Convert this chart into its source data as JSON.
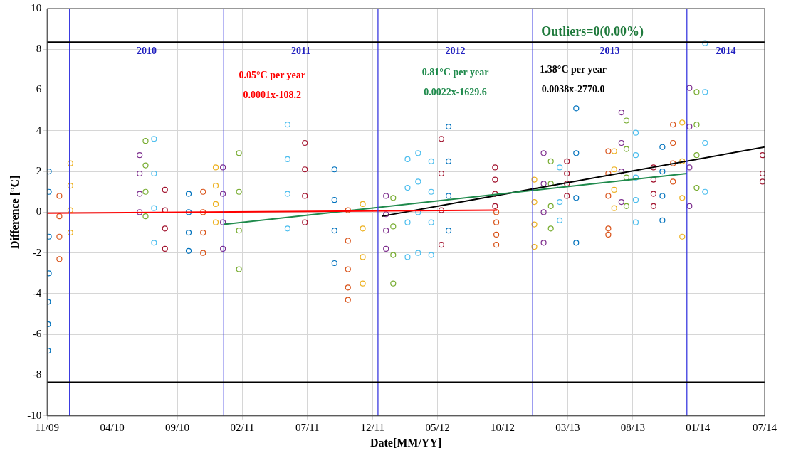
{
  "chart_data": {
    "type": "scatter",
    "xlabel": "Date[MM/YY]",
    "ylabel": "Difference [°C]",
    "marker": "circle",
    "grid": true,
    "xlim": [
      "2009-11-09",
      "2014-07-04"
    ],
    "xticks": [
      {
        "value": "2009-11-09",
        "label": "11/09"
      },
      {
        "value": "2010-04-12",
        "label": "04/10"
      },
      {
        "value": "2010-09-13",
        "label": "09/10"
      },
      {
        "value": "2011-02-14",
        "label": "02/11"
      },
      {
        "value": "2011-07-18",
        "label": "07/11"
      },
      {
        "value": "2011-12-19",
        "label": "12/11"
      },
      {
        "value": "2012-05-21",
        "label": "05/12"
      },
      {
        "value": "2012-10-22",
        "label": "10/12"
      },
      {
        "value": "2013-03-25",
        "label": "03/13"
      },
      {
        "value": "2013-08-26",
        "label": "08/13"
      },
      {
        "value": "2014-01-27",
        "label": "01/14"
      },
      {
        "value": "2014-07-04",
        "label": "07/14"
      }
    ],
    "ylim": [
      -10,
      10
    ],
    "yticks": [
      -10,
      -8,
      -6,
      -4,
      -2,
      0,
      2,
      4,
      6,
      8,
      10
    ],
    "series": [
      {
        "color": "#0072bd",
        "x": [
          "2009-11-13",
          "2009-11-13",
          "2009-11-13",
          "2009-11-13",
          "2009-11-11",
          "2009-11-11",
          "2009-11-11",
          "2010-10-10",
          "2010-10-10",
          "2010-10-10",
          "2010-10-10",
          "2011-09-20",
          "2011-09-20",
          "2011-09-20",
          "2011-09-20",
          "2012-06-16",
          "2012-06-16",
          "2012-06-16",
          "2012-06-16",
          "2013-04-14",
          "2013-04-14",
          "2013-04-14",
          "2013-04-14",
          "2013-11-04",
          "2013-11-04",
          "2013-11-04",
          "2013-11-04"
        ],
        "values": [
          2.0,
          1.0,
          -1.2,
          -3.0,
          -4.4,
          -5.5,
          -6.8,
          -1.9,
          -1.0,
          0,
          0.9,
          -2.5,
          -0.9,
          0.6,
          2.1,
          -0.9,
          0.8,
          2.5,
          4.2,
          -1.5,
          0.7,
          2.9,
          5.1,
          -0.4,
          0.8,
          2.0,
          3.2
        ]
      },
      {
        "color": "#d95319",
        "x": [
          "2009-12-08",
          "2009-12-08",
          "2009-12-08",
          "2009-12-08",
          "2010-11-13",
          "2010-11-13",
          "2010-11-13",
          "2010-11-13",
          "2011-10-22",
          "2011-10-22",
          "2011-10-22",
          "2011-10-22",
          "2011-10-22",
          "2012-10-07",
          "2012-10-07",
          "2012-10-07",
          "2012-10-07",
          "2013-06-29",
          "2013-06-29",
          "2013-06-29",
          "2013-06-29",
          "2013-06-29",
          "2013-11-29",
          "2013-11-29",
          "2013-11-29",
          "2013-11-29"
        ],
        "values": [
          -2.3,
          -1.2,
          -0.2,
          0.8,
          -2,
          -1,
          0,
          1,
          -4.3,
          -3.7,
          -2.8,
          -1.4,
          0.1,
          -1.6,
          -1.1,
          -0.5,
          0,
          -1.1,
          -0.8,
          0.8,
          1.9,
          3.0,
          1.5,
          2.4,
          3.4,
          4.3
        ]
      },
      {
        "color": "#edb120",
        "x": [
          "2010-01-03",
          "2010-01-03",
          "2010-01-03",
          "2010-01-03",
          "2010-12-13",
          "2010-12-13",
          "2010-12-13",
          "2010-12-13",
          "2011-11-26",
          "2011-11-26",
          "2011-11-26",
          "2011-11-26",
          "2013-01-05",
          "2013-01-05",
          "2013-01-05",
          "2013-01-05",
          "2013-07-13",
          "2013-07-13",
          "2013-07-13",
          "2013-07-13",
          "2013-12-21",
          "2013-12-21",
          "2013-12-21",
          "2013-12-21"
        ],
        "values": [
          -1,
          0.1,
          1.3,
          2.4,
          -0.5,
          0.4,
          1.3,
          2.2,
          -3.5,
          -2.2,
          -0.8,
          0.4,
          -1.7,
          -0.6,
          0.5,
          1.6,
          0.2,
          1.1,
          2.1,
          3.0,
          -1.2,
          0.7,
          2.5,
          4.4
        ]
      },
      {
        "color": "#7e2f8e",
        "x": [
          "2010-06-16",
          "2010-06-16",
          "2010-06-16",
          "2010-06-16",
          "2010-12-30",
          "2010-12-30",
          "2010-12-30",
          "2010-12-30",
          "2012-01-20",
          "2012-01-20",
          "2012-01-20",
          "2012-01-20",
          "2013-01-27",
          "2013-01-27",
          "2013-01-27",
          "2013-01-27",
          "2013-07-30",
          "2013-07-30",
          "2013-07-30",
          "2013-07-30",
          "2014-01-07",
          "2014-01-07",
          "2014-01-07",
          "2014-01-07"
        ],
        "values": [
          0,
          0.9,
          1.9,
          2.8,
          -1.8,
          -0.5,
          0.9,
          2.2,
          -1.8,
          -0.9,
          -0.1,
          0.8,
          -1.5,
          0,
          1.4,
          2.9,
          0.5,
          2.0,
          3.4,
          4.9,
          0.3,
          2.2,
          4.2,
          6.1
        ]
      },
      {
        "color": "#77ac30",
        "x": [
          "2010-06-30",
          "2010-06-30",
          "2010-06-30",
          "2010-06-30",
          "2011-02-06",
          "2011-02-06",
          "2011-02-06",
          "2011-02-06",
          "2012-02-06",
          "2012-02-06",
          "2012-02-06",
          "2012-02-06",
          "2013-02-13",
          "2013-02-13",
          "2013-02-13",
          "2013-02-13",
          "2013-08-11",
          "2013-08-11",
          "2013-08-11",
          "2013-08-11",
          "2014-01-24",
          "2014-01-24",
          "2014-01-24",
          "2014-01-24"
        ],
        "values": [
          -0.2,
          1.0,
          2.3,
          3.5,
          -2.8,
          -0.9,
          1.0,
          2.9,
          -3.5,
          -2.1,
          -0.7,
          0.7,
          -0.8,
          0.3,
          1.4,
          2.5,
          0.3,
          1.7,
          3.1,
          4.5,
          1.2,
          2.8,
          4.3,
          5.9
        ]
      },
      {
        "color": "#4dbeee",
        "x": [
          "2010-07-20",
          "2010-07-20",
          "2010-07-20",
          "2010-07-20",
          "2011-06-01",
          "2011-06-01",
          "2011-06-01",
          "2011-06-01",
          "2012-03-11",
          "2012-03-11",
          "2012-03-11",
          "2012-03-11",
          "2012-04-05",
          "2012-04-05",
          "2012-04-05",
          "2012-04-05",
          "2012-05-06",
          "2012-05-06",
          "2012-05-06",
          "2012-05-06",
          "2013-03-06",
          "2013-03-06",
          "2013-03-06",
          "2013-03-06",
          "2013-09-02",
          "2013-09-02",
          "2013-09-02",
          "2013-09-02",
          "2013-09-02",
          "2014-02-13",
          "2014-02-13",
          "2014-02-13",
          "2014-02-13"
        ],
        "values": [
          -1.5,
          0.2,
          1.9,
          3.6,
          -0.8,
          0.9,
          2.6,
          4.3,
          -2.2,
          -0.5,
          1.2,
          2.6,
          -2.0,
          0,
          1.5,
          2.9,
          -2.1,
          -0.5,
          1.0,
          2.5,
          -0.4,
          0.5,
          1.3,
          2.2,
          -0.5,
          0.6,
          1.7,
          2.8,
          3.9,
          1.0,
          3.4,
          5.9,
          8.3
        ]
      },
      {
        "color": "#a2142f",
        "x": [
          "2010-08-15",
          "2010-08-15",
          "2010-08-15",
          "2010-08-15",
          "2011-07-12",
          "2011-07-12",
          "2011-07-12",
          "2011-07-12",
          "2012-05-30",
          "2012-05-30",
          "2012-05-30",
          "2012-05-30",
          "2012-10-04",
          "2012-10-04",
          "2012-10-04",
          "2012-10-04",
          "2013-03-23",
          "2013-03-23",
          "2013-03-23",
          "2013-03-23",
          "2013-10-14",
          "2013-10-14",
          "2013-10-14",
          "2013-10-14",
          "2014-06-29",
          "2014-06-29",
          "2014-06-29"
        ],
        "values": [
          -1.8,
          -0.8,
          0.1,
          1.1,
          -0.5,
          0.8,
          2.1,
          3.4,
          -1.6,
          0.1,
          1.9,
          3.6,
          0.3,
          0.9,
          1.6,
          2.2,
          0.8,
          1.4,
          1.9,
          2.5,
          0.3,
          0.9,
          1.6,
          2.2,
          1.5,
          1.9,
          2.8
        ]
      },
      {
        "type": "line",
        "marker": "none",
        "name": "0.05°C per year",
        "color": "#ff0000",
        "x": [
          "2009-11-09",
          "2012-10-09"
        ],
        "values": [
          -0.05,
          0.1
        ]
      },
      {
        "type": "line",
        "marker": "none",
        "name": "0.81°C per year",
        "color": "#1f8a4c",
        "x": [
          "2011-01-01",
          "2014-01-01"
        ],
        "values": [
          -0.6,
          1.9
        ]
      },
      {
        "type": "line",
        "marker": "none",
        "name": "1.38°C per year",
        "color": "#000000",
        "x": [
          "2012-01-10",
          "2014-07-04"
        ],
        "values": [
          -0.2,
          3.2
        ]
      }
    ],
    "ref_lines": [
      {
        "axis": "x",
        "value": "2010-01-01",
        "label": "2010",
        "color": "#3b3be0"
      },
      {
        "axis": "x",
        "value": "2011-01-01",
        "label": "2011",
        "color": "#3b3be0"
      },
      {
        "axis": "x",
        "value": "2012-01-01",
        "label": "2012",
        "color": "#3b3be0"
      },
      {
        "axis": "x",
        "value": "2013-01-01",
        "label": "2013",
        "color": "#3b3be0"
      },
      {
        "axis": "x",
        "value": "2014-01-01",
        "label": "2014",
        "color": "#3b3be0"
      },
      {
        "axis": "y",
        "value": 8.35,
        "color": "#000000"
      },
      {
        "axis": "y",
        "value": -8.35,
        "color": "#000000"
      }
    ],
    "annotations": [
      "Outliers=0(0.00%)",
      "0.0001x-108.2",
      "0.0022x-1629.6",
      "0.0038x-2770.0"
    ]
  }
}
